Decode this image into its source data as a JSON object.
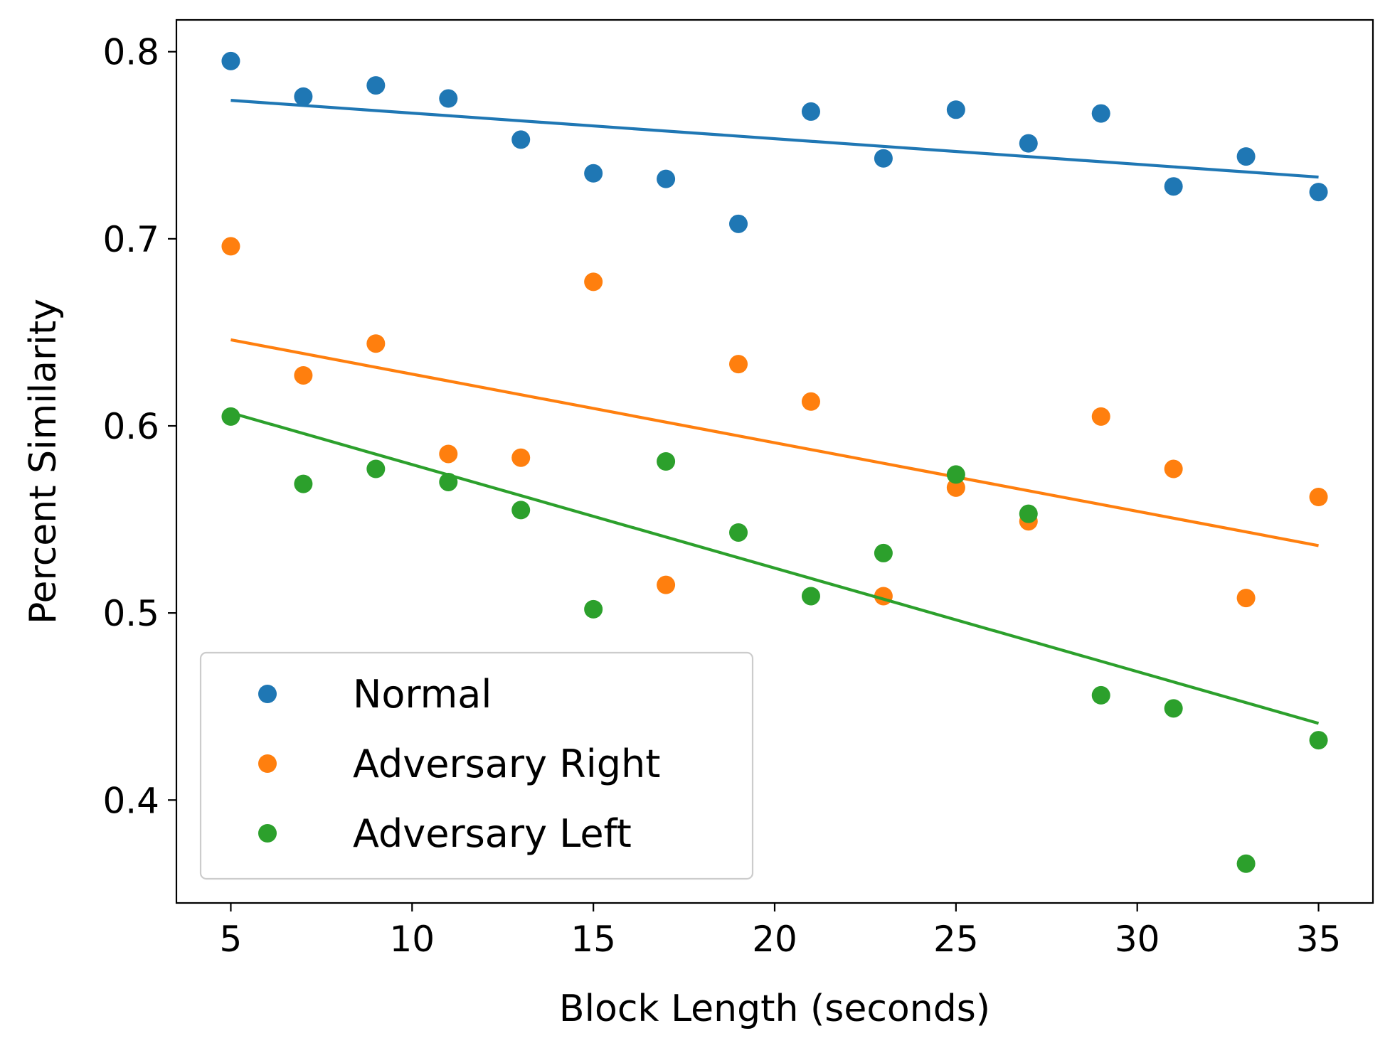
{
  "chart_data": {
    "type": "scatter",
    "title": "",
    "xlabel": "Block Length (seconds)",
    "ylabel": "Percent Similarity",
    "xlim": [
      3.5,
      36.5
    ],
    "ylim": [
      0.345,
      0.817
    ],
    "x_ticks": [
      5,
      10,
      15,
      20,
      25,
      30,
      35
    ],
    "x_tick_labels": [
      "5",
      "10",
      "15",
      "20",
      "25",
      "30",
      "35"
    ],
    "y_ticks": [
      0.4,
      0.5,
      0.6,
      0.7,
      0.8
    ],
    "y_tick_labels": [
      "0.4",
      "0.5",
      "0.6",
      "0.7",
      "0.8"
    ],
    "grid": false,
    "legend_position": "lower-left",
    "x": [
      5,
      7,
      9,
      11,
      13,
      15,
      17,
      19,
      21,
      23,
      25,
      27,
      29,
      31,
      33,
      35
    ],
    "series": [
      {
        "name": "Normal",
        "color": "#1f77b4",
        "values": [
          0.795,
          0.776,
          0.782,
          0.775,
          0.753,
          0.735,
          0.732,
          0.708,
          0.768,
          0.743,
          0.769,
          0.751,
          0.767,
          0.728,
          0.744,
          0.725
        ],
        "trend": [
          0.774,
          0.733
        ]
      },
      {
        "name": "Adversary Right",
        "color": "#ff7f0e",
        "values": [
          0.696,
          0.627,
          0.644,
          0.585,
          0.583,
          0.677,
          0.515,
          0.633,
          0.613,
          0.509,
          0.567,
          0.549,
          0.605,
          0.577,
          0.508,
          0.562
        ],
        "trend": [
          0.646,
          0.536
        ]
      },
      {
        "name": "Adversary Left",
        "color": "#2ca02c",
        "values": [
          0.605,
          0.569,
          0.577,
          0.57,
          0.555,
          0.502,
          0.581,
          0.543,
          0.509,
          0.532,
          0.574,
          0.553,
          0.456,
          0.449,
          0.366,
          0.432
        ],
        "trend": [
          0.607,
          0.441
        ]
      }
    ]
  }
}
